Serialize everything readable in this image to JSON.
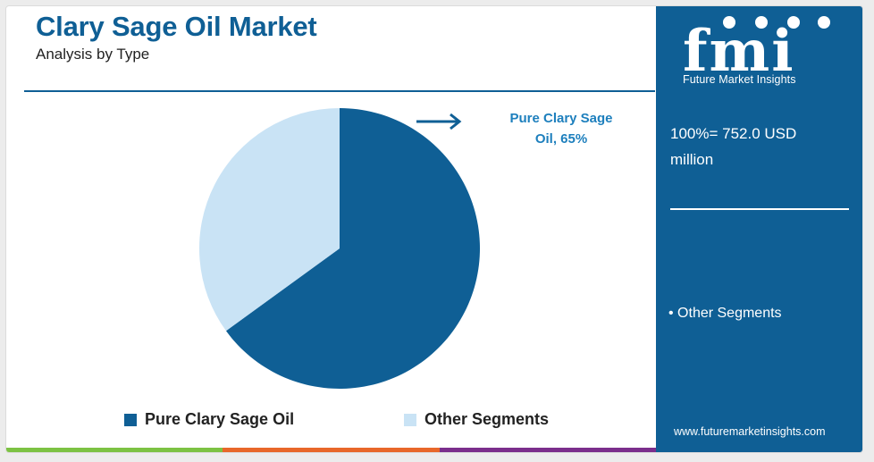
{
  "header": {
    "title": "Clary Sage Oil Market",
    "subtitle": "Analysis by Type"
  },
  "callout": {
    "label_line1": "Pure Clary Sage",
    "label_line2": "Oil, 65%"
  },
  "side_panel": {
    "logo_text": "fmi",
    "logo_subtitle": "Future Market Insights",
    "total_line1": "100%= 752.0 USD",
    "total_line2": "million",
    "bullet": "• Other Segments",
    "url": "www.futuremarketinsights.com"
  },
  "colors": {
    "brand_blue": "#0f5f95",
    "light_blue": "#c9e3f5",
    "callout_blue": "#1d7fbd",
    "bar_green": "#7cc243",
    "bar_orange": "#e8672a",
    "bar_purple": "#7b2e8c"
  },
  "chart_data": {
    "type": "pie",
    "title": "Clary Sage Oil Market",
    "subtitle": "Analysis by Type",
    "total": "752.0 USD million",
    "slices": [
      {
        "label": "Pure Clary Sage Oil",
        "value": 65,
        "color": "#0f5f95"
      },
      {
        "label": "Other Segments",
        "value": 35,
        "color": "#c9e3f5"
      }
    ],
    "legend": [
      {
        "label": "Pure Clary Sage Oil",
        "color": "#0f5f95"
      },
      {
        "label": "Other Segments",
        "color": "#c9e3f5"
      }
    ],
    "legend_position": "bottom"
  }
}
